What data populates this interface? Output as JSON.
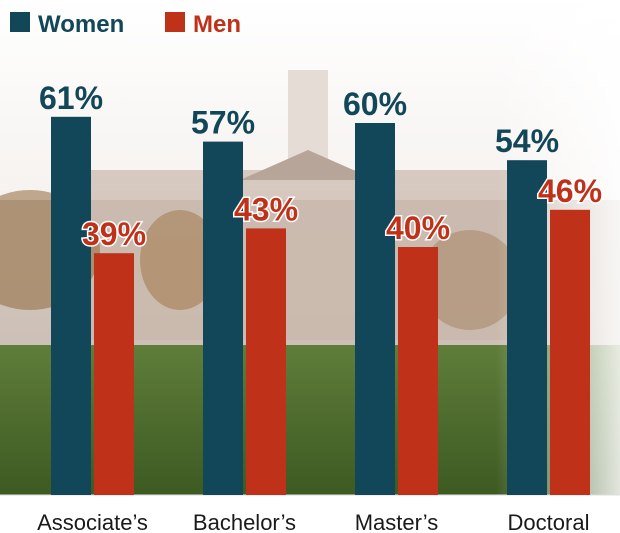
{
  "chart_data": {
    "type": "bar",
    "categories": [
      "Associate’s",
      "Bachelor’s",
      "Master’s",
      "Doctoral"
    ],
    "series": [
      {
        "name": "Women",
        "color": "#12475a",
        "values": [
          61,
          57,
          60,
          54
        ],
        "value_labels": [
          "61%",
          "57%",
          "60%",
          "54%"
        ]
      },
      {
        "name": "Men",
        "color": "#c0311a",
        "values": [
          39,
          43,
          40,
          46
        ],
        "value_labels": [
          "39%",
          "43%",
          "40%",
          "46%"
        ]
      }
    ]
  }
}
